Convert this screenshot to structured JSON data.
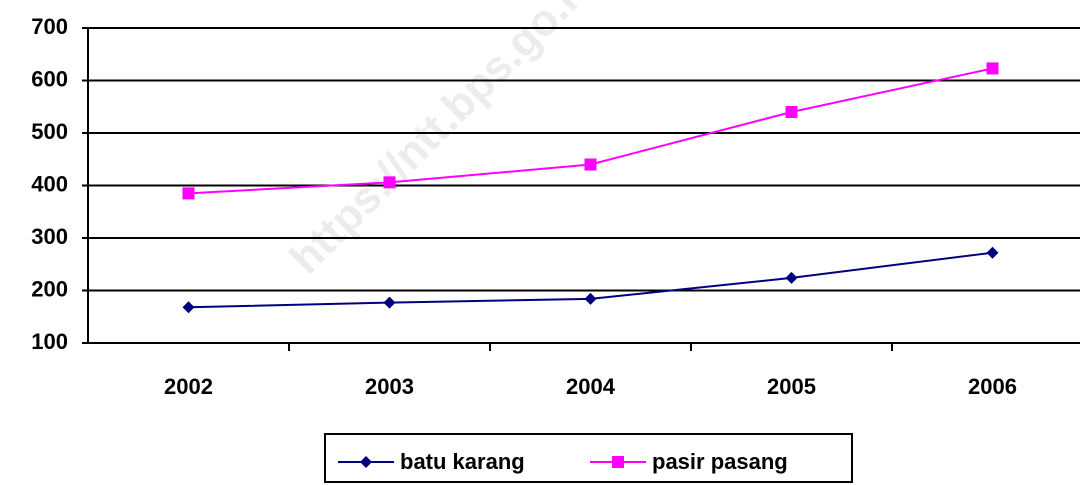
{
  "chart_data": {
    "type": "line",
    "watermark": "https://ntt.bps.go.id",
    "categories": [
      "2002",
      "2003",
      "2004",
      "2005",
      "2006"
    ],
    "series": [
      {
        "name": "batu karang",
        "color": "#000080",
        "marker": "diamond",
        "values": [
          168,
          177,
          184,
          224,
          272
        ]
      },
      {
        "name": "pasir pasang",
        "color": "#ff00ff",
        "marker": "square",
        "values": [
          385,
          406,
          440,
          540,
          623
        ]
      }
    ],
    "ylim": [
      100,
      700
    ],
    "yticks": [
      100,
      200,
      300,
      400,
      500,
      600,
      700
    ],
    "grid": true,
    "legend": "bottom"
  }
}
